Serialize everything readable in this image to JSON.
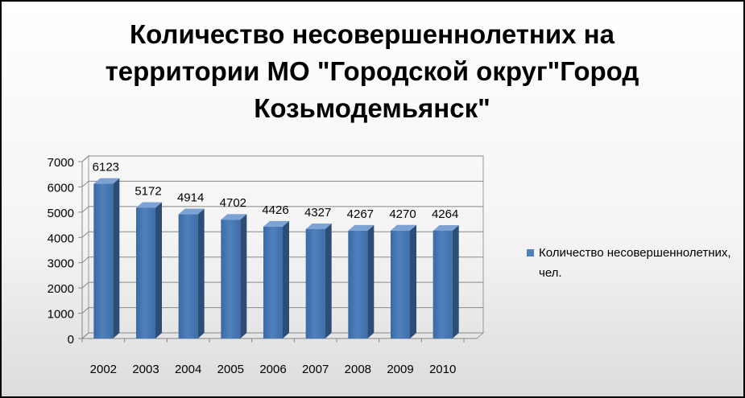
{
  "chart_data": {
    "type": "bar3d",
    "title": "Количество несовершеннолетних на территории МО \"Городской округ\"Город Козьмодемьянск\"",
    "categories": [
      "2002",
      "2003",
      "2004",
      "2005",
      "2006",
      "2007",
      "2008",
      "2009",
      "2010"
    ],
    "series": [
      {
        "name": "Количество несовершеннолетних, чел.",
        "color": "#4f81bd",
        "values": [
          6123,
          5172,
          4914,
          4702,
          4426,
          4327,
          4267,
          4270,
          4264
        ]
      }
    ],
    "ylim": [
      0,
      7000
    ],
    "yticks": [
      0,
      1000,
      2000,
      3000,
      4000,
      5000,
      6000,
      7000
    ],
    "grid": true,
    "legend": "right",
    "value_labels_shown": true
  }
}
